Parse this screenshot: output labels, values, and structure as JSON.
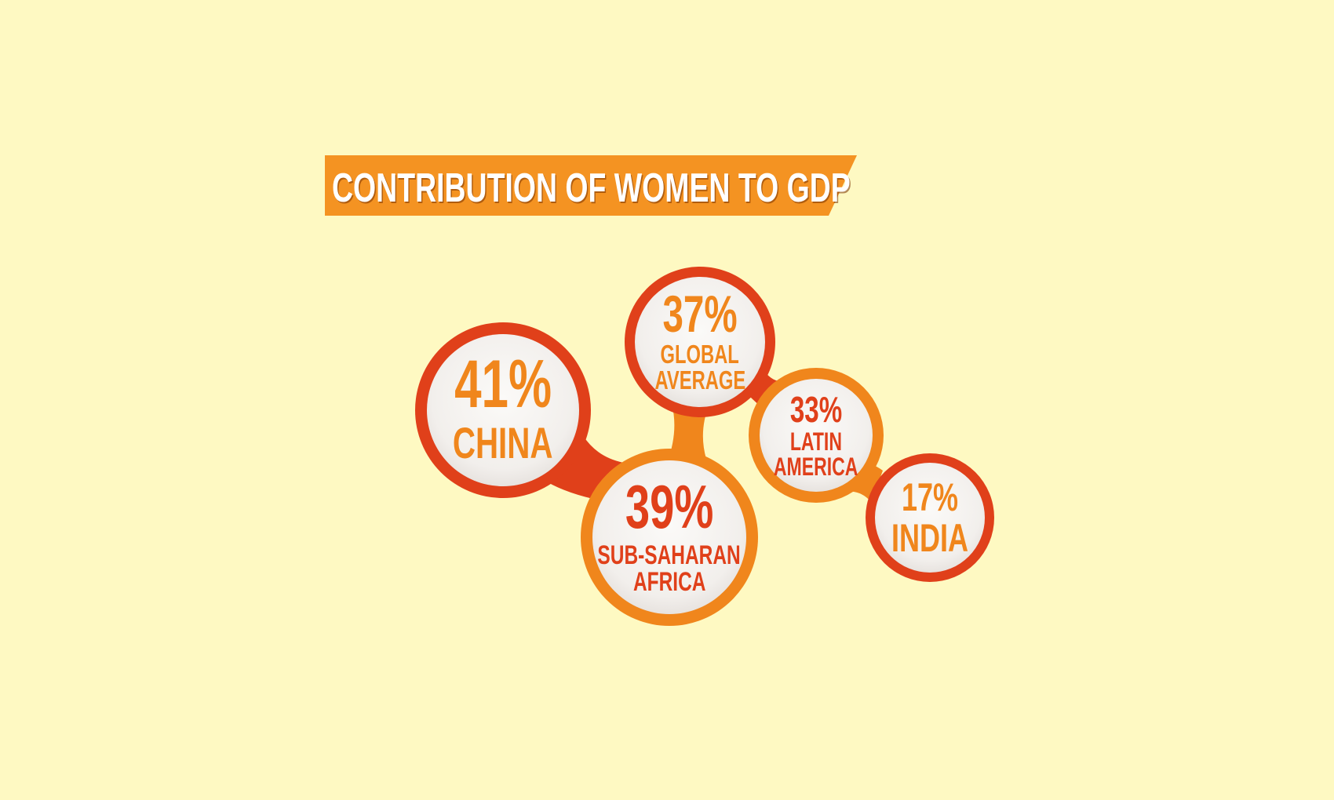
{
  "title": "CONTRIBUTION OF WOMEN TO GDP",
  "colors": {
    "background": "#fef9c2",
    "banner": "#f49322",
    "red": "#e0401a",
    "orange": "#f0861c",
    "bubble_fill": "#f4f1ee"
  },
  "bubbles": [
    {
      "id": "china",
      "percent": "41%",
      "percent_value": 41,
      "region_lines": [
        "CHINA"
      ]
    },
    {
      "id": "global-average",
      "percent": "37%",
      "percent_value": 37,
      "region_lines": [
        "GLOBAL",
        "AVERAGE"
      ]
    },
    {
      "id": "sub-saharan-africa",
      "percent": "39%",
      "percent_value": 39,
      "region_lines": [
        "SUB-SAHARAN",
        "AFRICA"
      ]
    },
    {
      "id": "latin-america",
      "percent": "33%",
      "percent_value": 33,
      "region_lines": [
        "LATIN",
        "AMERICA"
      ]
    },
    {
      "id": "india",
      "percent": "17%",
      "percent_value": 17,
      "region_lines": [
        "INDIA"
      ]
    }
  ]
}
